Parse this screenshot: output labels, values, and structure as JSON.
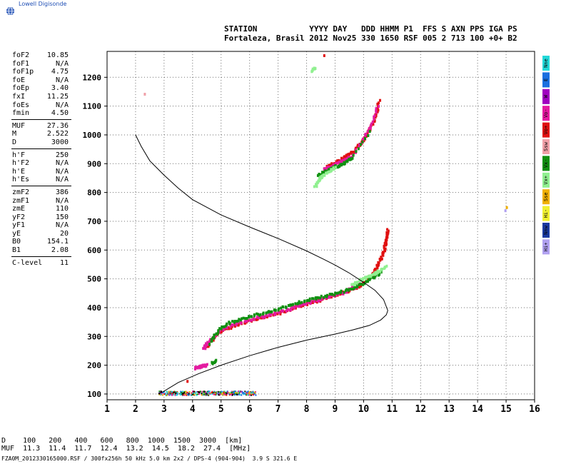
{
  "brand": {
    "name": "Lowell Digisonde",
    "logo": "globe-icon"
  },
  "header": {
    "labels": "STATION           YYYY DAY   DDD HHMM P1  FFS S AXN PPS IGA PS",
    "values": "Fortaleza, Brasil 2012 Nov25 330 1650 RSF 005 2 713 100 +0+ B2"
  },
  "params": {
    "group1": [
      {
        "label": "foF2",
        "value": "10.85"
      },
      {
        "label": "foF1",
        "value": "N/A"
      },
      {
        "label": "foF1p",
        "value": "4.75"
      },
      {
        "label": "foE",
        "value": "N/A"
      },
      {
        "label": "foEp",
        "value": "3.40"
      },
      {
        "label": "fxI",
        "value": "11.25"
      },
      {
        "label": "foEs",
        "value": "N/A"
      },
      {
        "label": "fmin",
        "value": "4.50"
      }
    ],
    "group2": [
      {
        "label": "MUF",
        "value": "27.36"
      },
      {
        "label": "M",
        "value": "2.522"
      },
      {
        "label": "D",
        "value": "3000"
      }
    ],
    "group3": [
      {
        "label": "h'F",
        "value": "250"
      },
      {
        "label": "h'F2",
        "value": "N/A"
      },
      {
        "label": "h'E",
        "value": "N/A"
      },
      {
        "label": "h'Es",
        "value": "N/A"
      }
    ],
    "group4": [
      {
        "label": "zmF2",
        "value": "386"
      },
      {
        "label": "zmF1",
        "value": "N/A"
      },
      {
        "label": "zmE",
        "value": "110"
      },
      {
        "label": "yF2",
        "value": "150"
      },
      {
        "label": "yF1",
        "value": "N/A"
      },
      {
        "label": "yE",
        "value": "20"
      },
      {
        "label": "B0",
        "value": "154.1"
      },
      {
        "label": "B1",
        "value": "2.08"
      }
    ],
    "group5": [
      {
        "label": "C-level",
        "value": "11"
      }
    ]
  },
  "chart_data": {
    "type": "scatter",
    "xlim": [
      1,
      16
    ],
    "ylim": [
      80,
      1290
    ],
    "xticks": [
      1,
      2,
      3,
      4,
      5,
      6,
      7,
      8,
      9,
      10,
      11,
      12,
      13,
      14,
      15,
      16
    ],
    "yticks": [
      100,
      200,
      300,
      400,
      500,
      600,
      700,
      800,
      900,
      1000,
      1100,
      1200
    ],
    "grid": true,
    "legend_position": "right",
    "legend": [
      {
        "label": "Nne",
        "color": "#22d8d8"
      },
      {
        "label": "E",
        "color": "#1a6fe0"
      },
      {
        "label": "W",
        "color": "#a000c0"
      },
      {
        "label": "Vo-",
        "color": "#e41aa0"
      },
      {
        "label": "Vo+",
        "color": "#e01010"
      },
      {
        "label": "Ssw",
        "color": "#f0a0a8"
      },
      {
        "label": "Vx-",
        "color": "#109010"
      },
      {
        "label": "Vx+",
        "color": "#90f090"
      },
      {
        "label": "Sse",
        "color": "#f0b000"
      },
      {
        "label": "Hi-",
        "color": "#f0f030"
      },
      {
        "label": "Nnw",
        "color": "#1a3aa0"
      },
      {
        "label": "Hi+",
        "color": "#b0a0f0"
      }
    ],
    "profile": {
      "x": [
        2.0,
        2.2,
        2.5,
        3.0,
        3.5,
        4.0,
        5.0,
        6.0,
        7.0,
        8.0,
        8.6,
        9.0,
        9.5,
        10.0,
        10.4,
        10.7,
        10.85,
        10.8,
        10.6,
        10.2,
        9.6,
        9.0,
        8.0,
        7.0,
        6.0,
        5.0,
        4.2,
        3.5,
        3.0,
        2.8
      ],
      "y": [
        1000,
        960,
        910,
        860,
        815,
        775,
        722,
        680,
        640,
        597,
        568,
        548,
        520,
        488,
        460,
        428,
        390,
        375,
        357,
        338,
        322,
        308,
        287,
        262,
        233,
        200,
        170,
        140,
        110,
        100
      ]
    },
    "traces": [
      {
        "name": "Vo+",
        "color": "#e01010",
        "x": [
          4.5,
          4.6,
          4.8,
          5.0,
          5.3,
          5.6,
          6.0,
          6.4,
          6.8,
          7.2,
          7.6,
          8.0,
          8.4,
          8.8,
          9.2,
          9.6,
          9.9,
          10.1,
          10.3,
          10.45,
          10.55,
          10.65,
          10.72,
          10.78,
          10.82,
          10.85
        ],
        "y": [
          262,
          280,
          300,
          318,
          330,
          342,
          352,
          362,
          374,
          386,
          400,
          412,
          424,
          436,
          448,
          462,
          478,
          495,
          515,
          535,
          556,
          578,
          600,
          622,
          645,
          670
        ]
      },
      {
        "name": "Vo-",
        "color": "#e41aa0",
        "x": [
          4.4,
          4.5,
          4.7,
          5.0,
          5.4,
          5.8,
          6.2,
          6.6,
          7.0,
          7.4,
          7.8,
          8.2,
          8.6,
          9.0,
          9.3,
          9.6,
          9.9
        ],
        "y": [
          255,
          272,
          296,
          322,
          338,
          350,
          362,
          370,
          382,
          394,
          408,
          420,
          432,
          444,
          452,
          466,
          482
        ]
      },
      {
        "name": "Vx-",
        "color": "#109010",
        "x": [
          4.6,
          4.8,
          5.0,
          5.3,
          5.7,
          6.1,
          6.5,
          6.9,
          7.3,
          7.7,
          8.1,
          8.5,
          8.9,
          9.3,
          9.7,
          10.0,
          10.3,
          10.6
        ],
        "y": [
          276,
          305,
          330,
          346,
          360,
          372,
          380,
          392,
          404,
          416,
          428,
          436,
          446,
          456,
          470,
          485,
          502,
          520
        ]
      },
      {
        "name": "Vx+",
        "color": "#90f090",
        "x": [
          9.6,
          9.8,
          10.0,
          10.2,
          10.4,
          10.6,
          10.8
        ],
        "y": [
          478,
          490,
          500,
          510,
          518,
          528,
          545
        ]
      },
      {
        "name": "Vo+",
        "color": "#e01010",
        "x": [
          8.7,
          8.9,
          9.1,
          9.3,
          9.5,
          9.7,
          9.9,
          10.1,
          10.3,
          10.45,
          10.55
        ],
        "y": [
          890,
          898,
          908,
          918,
          930,
          948,
          968,
          998,
          1030,
          1070,
          1120
        ]
      },
      {
        "name": "Vo-",
        "color": "#e41aa0",
        "x": [
          8.6,
          8.8,
          9.0,
          9.2,
          9.4,
          9.6,
          10.0,
          10.3,
          10.5
        ],
        "y": [
          880,
          888,
          895,
          905,
          915,
          925,
          985,
          1040,
          1100
        ]
      },
      {
        "name": "Vx-",
        "color": "#109010",
        "x": [
          8.4,
          8.6,
          8.8,
          9.0,
          9.2,
          9.4,
          9.6,
          10.2
        ],
        "y": [
          860,
          870,
          880,
          890,
          895,
          905,
          920,
          1010
        ]
      },
      {
        "name": "Vx+",
        "color": "#90f090",
        "x": [
          8.3,
          8.4,
          8.5,
          8.6,
          8.8,
          9.0
        ],
        "y": [
          820,
          835,
          850,
          860,
          872,
          885
        ]
      },
      {
        "name": "Vx+",
        "color": "#90f090",
        "x": [
          8.2,
          8.3
        ],
        "y": [
          1220,
          1235
        ]
      },
      {
        "name": "Vo+",
        "color": "#e01010",
        "x": [
          8.6
        ],
        "y": [
          1275
        ]
      },
      {
        "name": "Vo-",
        "color": "#e41aa0",
        "x": [
          4.1,
          4.2,
          4.3,
          4.4,
          4.5
        ],
        "y": [
          190,
          192,
          195,
          197,
          200
        ]
      },
      {
        "name": "Vx-",
        "color": "#109010",
        "x": [
          4.7,
          4.8
        ],
        "y": [
          205,
          215
        ]
      },
      {
        "name": "Vo+",
        "color": "#e01010",
        "x": [
          3.8
        ],
        "y": [
          145
        ]
      },
      {
        "name": "Ssw",
        "color": "#f0a0a8",
        "x": [
          2.3
        ],
        "y": [
          1140
        ]
      },
      {
        "name": "Hi+",
        "color": "#b0a0f0",
        "x": [
          15.0
        ],
        "y": [
          740
        ]
      },
      {
        "name": "Sse",
        "color": "#f0b000",
        "x": [
          15.0
        ],
        "y": [
          750
        ]
      }
    ],
    "es_band": {
      "x_range": [
        2.8,
        6.2
      ],
      "y_range": [
        98,
        112
      ],
      "colors": [
        "#1a6fe0",
        "#22d8d8",
        "#000000",
        "#e01010",
        "#109010",
        "#e41aa0",
        "#f0b000"
      ]
    }
  },
  "bottom_table": {
    "row_d": "D    100   200   400   600   800  1000  1500  3000  [km]",
    "row_muf": "MUF  11.3  11.4  11.7  12.4  13.2  14.5  18.2  27.4  [MHz]"
  },
  "footer": "FZA0M_2012330165000.RSF / 300fx256h 50 kHz 5.0 km 2x2 / DPS-4 (904-904)  3.9 S 321.6 E"
}
